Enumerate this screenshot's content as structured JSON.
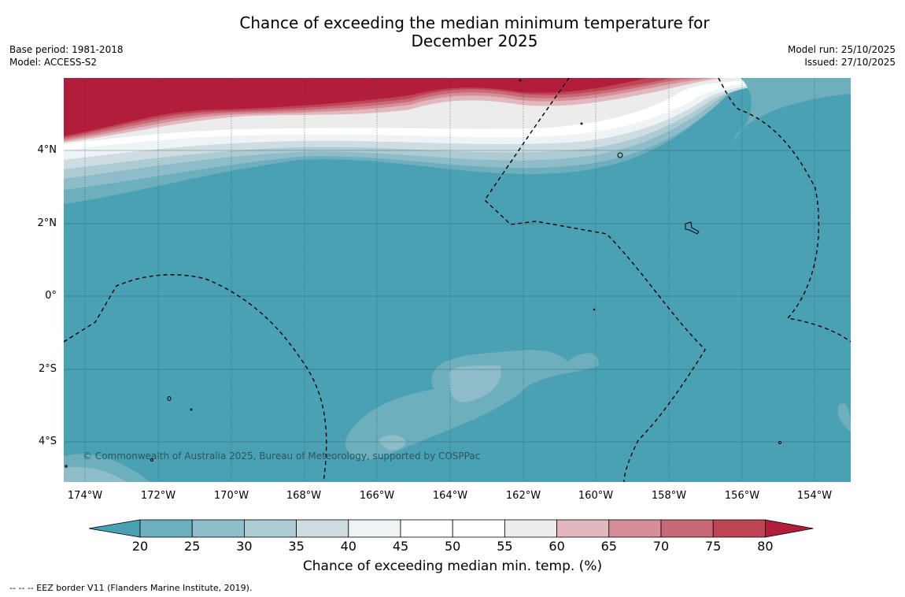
{
  "title_line1": "Chance of exceeding the median minimum temperature for",
  "title_line2": "December 2025",
  "meta": {
    "base_period": "Base period: 1981-2018",
    "model": "Model: ACCESS-S2",
    "model_run": "Model run: 25/10/2025",
    "issued": "Issued: 27/10/2025"
  },
  "map": {
    "copyright": "© Commonwealth of Australia 2025, Bureau of Meteorology, supported by COSPPac",
    "lat_labels": [
      "4°N",
      "2°N",
      "0°",
      "2°S",
      "4°S"
    ],
    "lon_labels": [
      "174°W",
      "172°W",
      "170°W",
      "168°W",
      "166°W",
      "164°W",
      "162°W",
      "160°W",
      "158°W",
      "156°W",
      "154°W"
    ]
  },
  "colorbar": {
    "ticks": [
      "20",
      "25",
      "30",
      "35",
      "40",
      "45",
      "50",
      "55",
      "60",
      "65",
      "70",
      "75",
      "80"
    ],
    "colors": [
      "#4aa1b3",
      "#6dafbd",
      "#8ebcc8",
      "#adcbd3",
      "#cfdde2",
      "#eef4f6",
      "#ffffff",
      "#ffffff",
      "#ececec",
      "#e2b8be",
      "#d68e98",
      "#c86a76",
      "#bf4555",
      "#b21d3b"
    ],
    "label": "Chance of exceeding median min. temp. (%)"
  },
  "footnote": "--  --  -- EEZ border V11 (Flanders Marine Institute, 2019)."
}
